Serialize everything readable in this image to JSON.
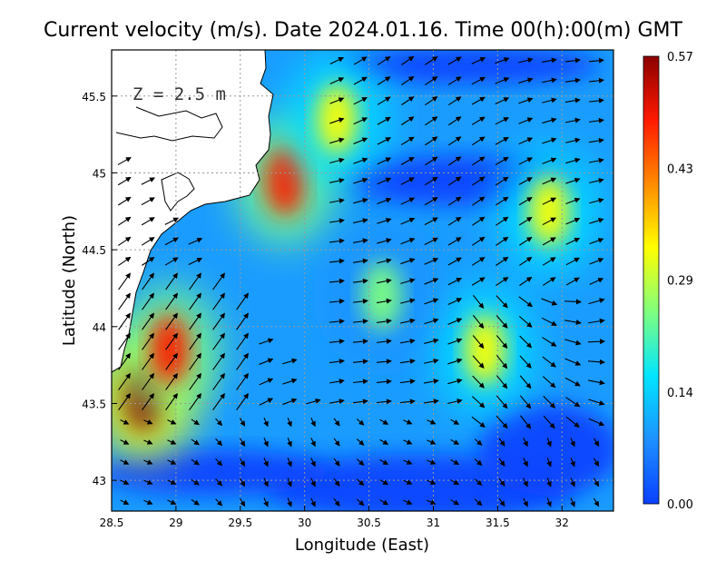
{
  "chart_data": {
    "type": "heatmap",
    "title": "Current velocity (m/s). Date 2024.01.16. Time 00(h):00(m) GMT",
    "xlabel": "Longitude (East)",
    "ylabel": "Latitude (North)",
    "annotation": "Z = 2.5 m",
    "xlim": [
      28.5,
      32.4
    ],
    "ylim": [
      42.8,
      45.8
    ],
    "x_ticks": [
      "28.5",
      "29",
      "29.5",
      "30",
      "30.5",
      "31",
      "31.5",
      "32"
    ],
    "y_ticks": [
      "43",
      "43.5",
      "44",
      "44.5",
      "45",
      "45.5"
    ],
    "grid": true,
    "colorbar": {
      "ticks": [
        "0.00",
        "0.14",
        "0.29",
        "0.43",
        "0.57"
      ],
      "range": [
        0,
        0.57
      ],
      "colors": [
        "#0a3fff",
        "#1e90ff",
        "#00e5ff",
        "#7fff7f",
        "#ffff00",
        "#ff8c00",
        "#ff1a00",
        "#8b0000"
      ]
    },
    "speed_hotspots": [
      {
        "lon": 28.75,
        "lat": 43.55,
        "speed": 0.57
      },
      {
        "lon": 28.95,
        "lat": 43.85,
        "speed": 0.45
      },
      {
        "lon": 29.85,
        "lat": 44.95,
        "speed": 0.5
      },
      {
        "lon": 30.25,
        "lat": 45.35,
        "speed": 0.35
      },
      {
        "lon": 31.4,
        "lat": 43.85,
        "speed": 0.3
      },
      {
        "lon": 31.9,
        "lat": 44.75,
        "speed": 0.32
      },
      {
        "lon": 30.6,
        "lat": 44.2,
        "speed": 0.22
      }
    ]
  }
}
